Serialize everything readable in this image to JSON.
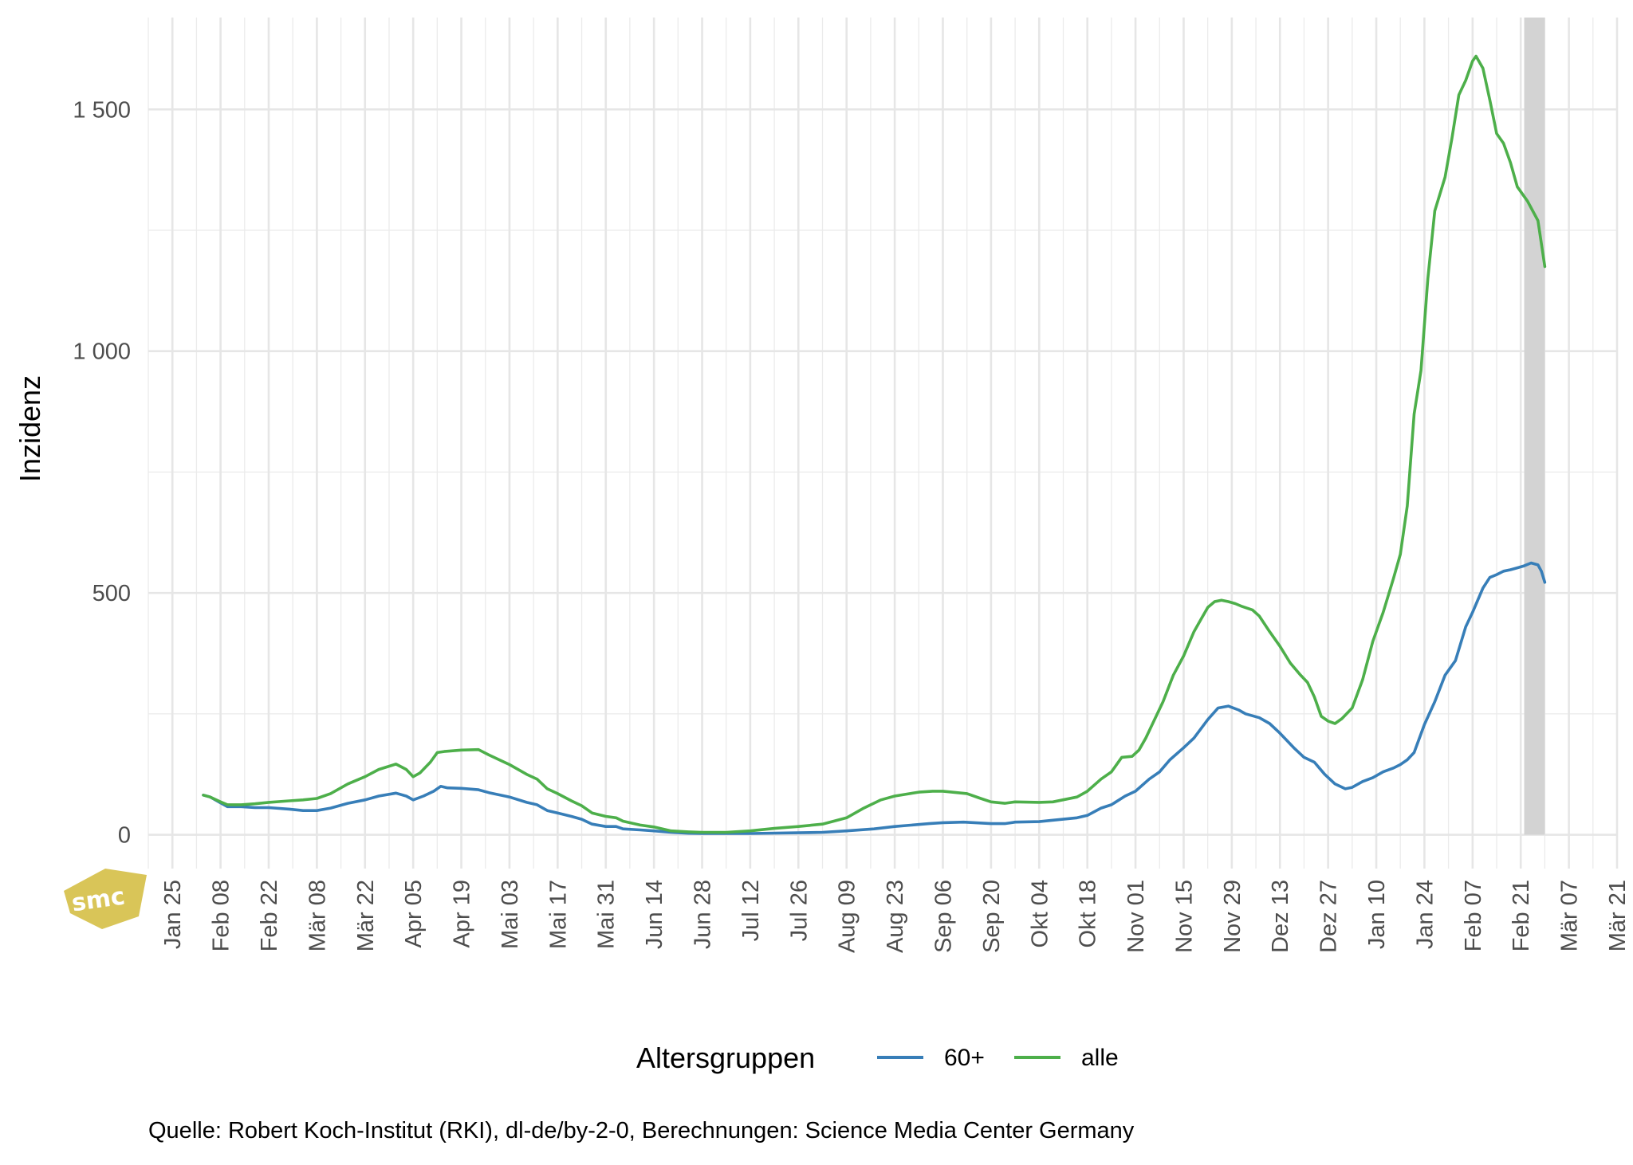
{
  "chart_data": {
    "type": "line",
    "ylabel": "Inzidenz",
    "xlabel": "",
    "y_ticks": [
      0,
      500,
      1000,
      1500
    ],
    "y_tick_labels": [
      "0",
      "500",
      "1 000",
      "1 500"
    ],
    "ylim": [
      -70,
      1690
    ],
    "x_tick_labels": [
      "Jan 25",
      "Feb 08",
      "Feb 22",
      "Mär 08",
      "Mär 22",
      "Apr 05",
      "Apr 19",
      "Mai 03",
      "Mai 17",
      "Mai 31",
      "Jun 14",
      "Jun 28",
      "Jul 12",
      "Jul 26",
      "Aug 09",
      "Aug 23",
      "Sep 06",
      "Sep 20",
      "Okt 04",
      "Okt 18",
      "Nov 01",
      "Nov 15",
      "Nov 29",
      "Dez 13",
      "Dez 27",
      "Jan 10",
      "Jan 24",
      "Feb 07",
      "Feb 21",
      "Mär 07",
      "Mär 21"
    ],
    "x_tick_dates": [
      "2021-01-25",
      "2021-02-08",
      "2021-02-22",
      "2021-03-08",
      "2021-03-22",
      "2021-04-05",
      "2021-04-19",
      "2021-05-03",
      "2021-05-17",
      "2021-05-31",
      "2021-06-14",
      "2021-06-28",
      "2021-07-12",
      "2021-07-26",
      "2021-08-09",
      "2021-08-23",
      "2021-09-06",
      "2021-09-20",
      "2021-10-04",
      "2021-10-18",
      "2021-11-01",
      "2021-11-15",
      "2021-11-29",
      "2021-12-13",
      "2021-12-27",
      "2022-01-10",
      "2022-01-24",
      "2022-02-07",
      "2022-02-21",
      "2022-03-07",
      "2022-03-21"
    ],
    "xlim": [
      "2021-01-18",
      "2022-03-21"
    ],
    "highlight_range": [
      "2022-02-22",
      "2022-02-28"
    ],
    "highlight_color": "#d3d3d3",
    "grid": true,
    "legend": {
      "title": "Altersgruppen",
      "position": "bottom"
    },
    "series": [
      {
        "name": "60+",
        "color": "#377eb8",
        "points": [
          [
            "2021-02-03",
            82
          ],
          [
            "2021-02-05",
            78
          ],
          [
            "2021-02-08",
            66
          ],
          [
            "2021-02-10",
            58
          ],
          [
            "2021-02-14",
            58
          ],
          [
            "2021-02-18",
            56
          ],
          [
            "2021-02-22",
            56
          ],
          [
            "2021-02-28",
            53
          ],
          [
            "2021-03-04",
            50
          ],
          [
            "2021-03-08",
            50
          ],
          [
            "2021-03-12",
            55
          ],
          [
            "2021-03-17",
            65
          ],
          [
            "2021-03-22",
            72
          ],
          [
            "2021-03-26",
            80
          ],
          [
            "2021-03-31",
            86
          ],
          [
            "2021-04-03",
            80
          ],
          [
            "2021-04-05",
            72
          ],
          [
            "2021-04-08",
            80
          ],
          [
            "2021-04-11",
            90
          ],
          [
            "2021-04-13",
            100
          ],
          [
            "2021-04-15",
            97
          ],
          [
            "2021-04-19",
            96
          ],
          [
            "2021-04-24",
            93
          ],
          [
            "2021-04-27",
            87
          ],
          [
            "2021-05-03",
            78
          ],
          [
            "2021-05-08",
            67
          ],
          [
            "2021-05-11",
            62
          ],
          [
            "2021-05-14",
            50
          ],
          [
            "2021-05-17",
            45
          ],
          [
            "2021-05-21",
            38
          ],
          [
            "2021-05-24",
            32
          ],
          [
            "2021-05-27",
            22
          ],
          [
            "2021-05-31",
            17
          ],
          [
            "2021-06-03",
            17
          ],
          [
            "2021-06-05",
            12
          ],
          [
            "2021-06-10",
            10
          ],
          [
            "2021-06-14",
            8
          ],
          [
            "2021-06-19",
            5
          ],
          [
            "2021-06-24",
            3
          ],
          [
            "2021-06-28",
            2.5
          ],
          [
            "2021-07-12",
            2.5
          ],
          [
            "2021-07-26",
            4
          ],
          [
            "2021-08-02",
            5
          ],
          [
            "2021-08-09",
            8
          ],
          [
            "2021-08-17",
            12
          ],
          [
            "2021-08-23",
            17
          ],
          [
            "2021-09-02",
            23
          ],
          [
            "2021-09-06",
            25
          ],
          [
            "2021-09-12",
            26
          ],
          [
            "2021-09-20",
            23
          ],
          [
            "2021-09-24",
            23
          ],
          [
            "2021-09-27",
            26
          ],
          [
            "2021-10-04",
            27
          ],
          [
            "2021-10-08",
            30
          ],
          [
            "2021-10-15",
            35
          ],
          [
            "2021-10-18",
            40
          ],
          [
            "2021-10-22",
            55
          ],
          [
            "2021-10-25",
            62
          ],
          [
            "2021-10-29",
            80
          ],
          [
            "2021-11-01",
            90
          ],
          [
            "2021-11-05",
            115
          ],
          [
            "2021-11-08",
            130
          ],
          [
            "2021-11-11",
            155
          ],
          [
            "2021-11-15",
            180
          ],
          [
            "2021-11-18",
            200
          ],
          [
            "2021-11-22",
            238
          ],
          [
            "2021-11-25",
            262
          ],
          [
            "2021-11-28",
            266
          ],
          [
            "2021-12-01",
            258
          ],
          [
            "2021-12-03",
            250
          ],
          [
            "2021-12-07",
            242
          ],
          [
            "2021-12-10",
            230
          ],
          [
            "2021-12-13",
            210
          ],
          [
            "2021-12-17",
            180
          ],
          [
            "2021-12-20",
            160
          ],
          [
            "2021-12-23",
            150
          ],
          [
            "2021-12-26",
            125
          ],
          [
            "2021-12-29",
            105
          ],
          [
            "2022-01-01",
            95
          ],
          [
            "2022-01-03",
            98
          ],
          [
            "2022-01-06",
            110
          ],
          [
            "2022-01-09",
            118
          ],
          [
            "2022-01-12",
            130
          ],
          [
            "2022-01-15",
            138
          ],
          [
            "2022-01-17",
            145
          ],
          [
            "2022-01-19",
            155
          ],
          [
            "2022-01-21",
            170
          ],
          [
            "2022-01-24",
            228
          ],
          [
            "2022-01-27",
            275
          ],
          [
            "2022-01-30",
            330
          ],
          [
            "2022-02-02",
            360
          ],
          [
            "2022-02-05",
            430
          ],
          [
            "2022-02-07",
            460
          ],
          [
            "2022-02-10",
            510
          ],
          [
            "2022-02-12",
            532
          ],
          [
            "2022-02-14",
            538
          ],
          [
            "2022-02-16",
            545
          ],
          [
            "2022-02-18",
            548
          ],
          [
            "2022-02-20",
            552
          ],
          [
            "2022-02-22",
            556
          ],
          [
            "2022-02-24",
            562
          ],
          [
            "2022-02-26",
            558
          ],
          [
            "2022-02-27",
            545
          ],
          [
            "2022-02-28",
            522
          ]
        ]
      },
      {
        "name": "alle",
        "color": "#4daf4a",
        "points": [
          [
            "2021-02-03",
            82
          ],
          [
            "2021-02-05",
            78
          ],
          [
            "2021-02-08",
            68
          ],
          [
            "2021-02-10",
            62
          ],
          [
            "2021-02-14",
            62
          ],
          [
            "2021-02-18",
            64
          ],
          [
            "2021-02-22",
            67
          ],
          [
            "2021-02-28",
            70
          ],
          [
            "2021-03-04",
            72
          ],
          [
            "2021-03-08",
            75
          ],
          [
            "2021-03-12",
            85
          ],
          [
            "2021-03-17",
            105
          ],
          [
            "2021-03-22",
            120
          ],
          [
            "2021-03-26",
            135
          ],
          [
            "2021-03-31",
            146
          ],
          [
            "2021-04-03",
            135
          ],
          [
            "2021-04-05",
            120
          ],
          [
            "2021-04-07",
            128
          ],
          [
            "2021-04-10",
            150
          ],
          [
            "2021-04-12",
            170
          ],
          [
            "2021-04-14",
            172
          ],
          [
            "2021-04-19",
            175
          ],
          [
            "2021-04-24",
            176
          ],
          [
            "2021-04-27",
            165
          ],
          [
            "2021-05-03",
            145
          ],
          [
            "2021-05-08",
            125
          ],
          [
            "2021-05-11",
            115
          ],
          [
            "2021-05-14",
            95
          ],
          [
            "2021-05-17",
            85
          ],
          [
            "2021-05-21",
            70
          ],
          [
            "2021-05-24",
            60
          ],
          [
            "2021-05-27",
            45
          ],
          [
            "2021-05-31",
            38
          ],
          [
            "2021-06-03",
            35
          ],
          [
            "2021-06-05",
            28
          ],
          [
            "2021-06-10",
            20
          ],
          [
            "2021-06-14",
            16
          ],
          [
            "2021-06-19",
            8
          ],
          [
            "2021-06-24",
            6
          ],
          [
            "2021-06-28",
            5
          ],
          [
            "2021-07-05",
            5
          ],
          [
            "2021-07-12",
            8
          ],
          [
            "2021-07-19",
            13
          ],
          [
            "2021-07-26",
            17
          ],
          [
            "2021-08-02",
            22
          ],
          [
            "2021-08-09",
            35
          ],
          [
            "2021-08-14",
            55
          ],
          [
            "2021-08-19",
            72
          ],
          [
            "2021-08-23",
            80
          ],
          [
            "2021-08-30",
            88
          ],
          [
            "2021-09-03",
            90
          ],
          [
            "2021-09-06",
            90
          ],
          [
            "2021-09-13",
            85
          ],
          [
            "2021-09-17",
            75
          ],
          [
            "2021-09-20",
            68
          ],
          [
            "2021-09-24",
            65
          ],
          [
            "2021-09-27",
            68
          ],
          [
            "2021-10-04",
            67
          ],
          [
            "2021-10-08",
            68
          ],
          [
            "2021-10-15",
            78
          ],
          [
            "2021-10-18",
            90
          ],
          [
            "2021-10-22",
            115
          ],
          [
            "2021-10-25",
            130
          ],
          [
            "2021-10-28",
            160
          ],
          [
            "2021-10-31",
            162
          ],
          [
            "2021-11-02",
            175
          ],
          [
            "2021-11-04",
            200
          ],
          [
            "2021-11-06",
            230
          ],
          [
            "2021-11-09",
            275
          ],
          [
            "2021-11-12",
            330
          ],
          [
            "2021-11-15",
            370
          ],
          [
            "2021-11-18",
            420
          ],
          [
            "2021-11-20",
            445
          ],
          [
            "2021-11-22",
            470
          ],
          [
            "2021-11-24",
            482
          ],
          [
            "2021-11-26",
            485
          ],
          [
            "2021-11-28",
            482
          ],
          [
            "2021-11-30",
            478
          ],
          [
            "2021-12-02",
            472
          ],
          [
            "2021-12-05",
            465
          ],
          [
            "2021-12-07",
            452
          ],
          [
            "2021-12-10",
            420
          ],
          [
            "2021-12-13",
            390
          ],
          [
            "2021-12-16",
            355
          ],
          [
            "2021-12-19",
            330
          ],
          [
            "2021-12-21",
            315
          ],
          [
            "2021-12-23",
            285
          ],
          [
            "2021-12-25",
            245
          ],
          [
            "2021-12-27",
            235
          ],
          [
            "2021-12-29",
            230
          ],
          [
            "2021-12-31",
            240
          ],
          [
            "2022-01-03",
            262
          ],
          [
            "2022-01-06",
            320
          ],
          [
            "2022-01-09",
            400
          ],
          [
            "2022-01-12",
            460
          ],
          [
            "2022-01-15",
            530
          ],
          [
            "2022-01-17",
            580
          ],
          [
            "2022-01-19",
            680
          ],
          [
            "2022-01-21",
            870
          ],
          [
            "2022-01-23",
            960
          ],
          [
            "2022-01-25",
            1150
          ],
          [
            "2022-01-27",
            1290
          ],
          [
            "2022-01-30",
            1360
          ],
          [
            "2022-02-01",
            1440
          ],
          [
            "2022-02-03",
            1530
          ],
          [
            "2022-02-05",
            1560
          ],
          [
            "2022-02-07",
            1600
          ],
          [
            "2022-02-08",
            1610
          ],
          [
            "2022-02-10",
            1585
          ],
          [
            "2022-02-12",
            1520
          ],
          [
            "2022-02-14",
            1450
          ],
          [
            "2022-02-16",
            1430
          ],
          [
            "2022-02-18",
            1390
          ],
          [
            "2022-02-20",
            1340
          ],
          [
            "2022-02-23",
            1310
          ],
          [
            "2022-02-26",
            1270
          ],
          [
            "2022-02-28",
            1175
          ]
        ]
      }
    ]
  },
  "caption": "Quelle: Robert Koch-Institut (RKI), dl-de/by-2-0, Berechnungen: Science Media Center Germany",
  "logo": {
    "text": "smc",
    "color": "#d9c558"
  }
}
